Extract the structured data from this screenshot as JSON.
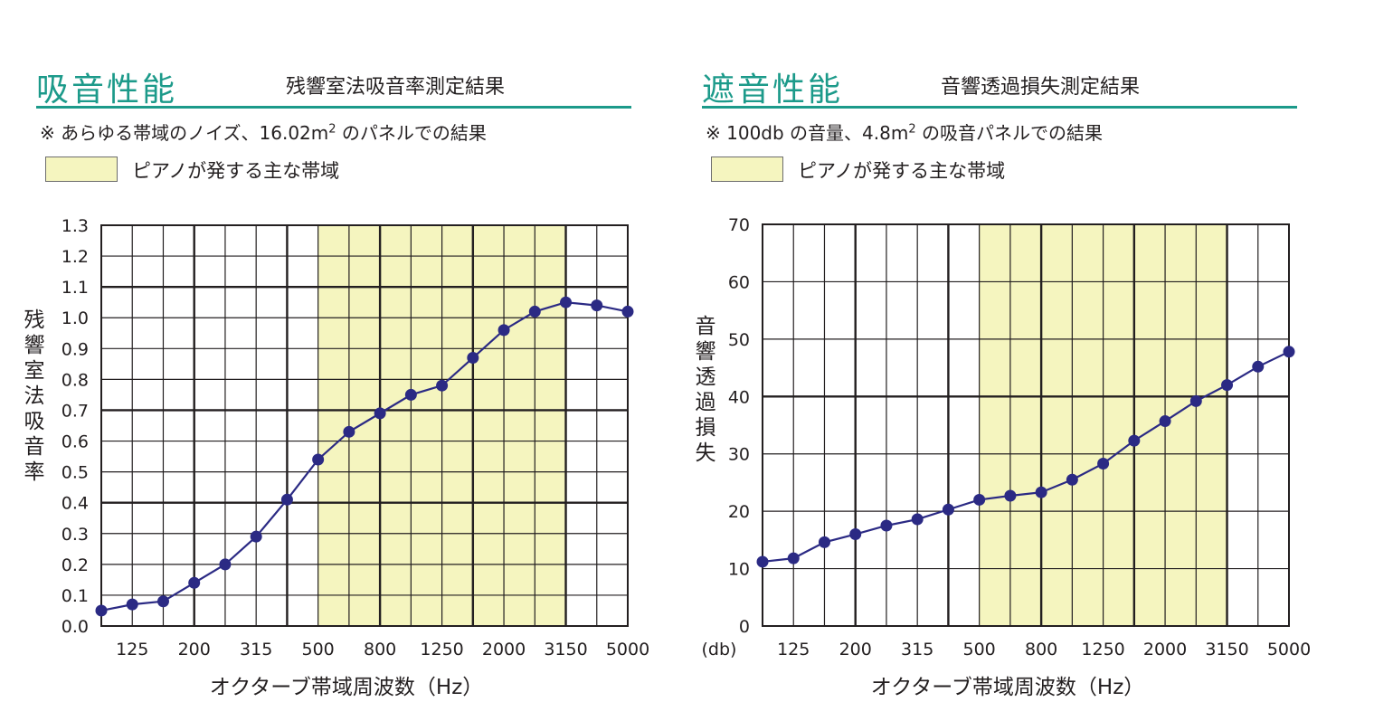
{
  "colors": {
    "heading": "#1c9a8a",
    "band_fill": "#f5f5bf",
    "series": "#2b2a84",
    "grid": "#231f20"
  },
  "chart_data": [
    {
      "type": "line",
      "heading": "吸音性能",
      "title": "残響室法吸音率測定結果",
      "note_prefix": "※ あらゆる帯域のノイズ、16.02m",
      "note_sup": "2",
      "note_suffix": " のパネルでの結果",
      "legend_label": "ピアノが発する主な帯域",
      "ylabel": "残響室法吸音率",
      "xlabel": "オクターブ帯域周波数（Hz）",
      "y_unit_label": "",
      "ylim": [
        0,
        1.3
      ],
      "y_ticks": [
        "0.0",
        "0.1",
        "0.2",
        "0.3",
        "0.4",
        "0.5",
        "0.6",
        "0.7",
        "0.8",
        "0.9",
        "1.0",
        "1.1",
        "1.2",
        "1.3"
      ],
      "x_tick_labels": [
        "125",
        "200",
        "315",
        "500",
        "800",
        "1250",
        "2000",
        "3150",
        "5000"
      ],
      "x": [
        100,
        125,
        160,
        200,
        250,
        315,
        400,
        500,
        630,
        800,
        1000,
        1250,
        1600,
        2000,
        2500,
        3150,
        4000,
        5000
      ],
      "values": [
        0.05,
        0.07,
        0.08,
        0.14,
        0.2,
        0.29,
        0.41,
        0.54,
        0.63,
        0.69,
        0.75,
        0.78,
        0.87,
        0.96,
        1.02,
        1.05,
        1.04,
        1.02
      ],
      "highlight_band": [
        "500",
        "3150"
      ],
      "grid": true
    },
    {
      "type": "line",
      "heading": "遮音性能",
      "title": "音響透過損失測定結果",
      "note_prefix": "※ 100db の音量、4.8m",
      "note_sup": "2",
      "note_suffix": " の吸音パネルでの結果",
      "legend_label": "ピアノが発する主な帯域",
      "ylabel": "音響透過損失",
      "xlabel": "オクターブ帯域周波数（Hz）",
      "y_unit_label": "(db)",
      "ylim": [
        0,
        70
      ],
      "y_ticks": [
        "0",
        "10",
        "20",
        "30",
        "40",
        "50",
        "60",
        "70"
      ],
      "x_tick_labels": [
        "125",
        "200",
        "315",
        "500",
        "800",
        "1250",
        "2000",
        "3150",
        "5000"
      ],
      "x": [
        100,
        125,
        160,
        200,
        250,
        315,
        400,
        500,
        630,
        800,
        1000,
        1250,
        1600,
        2000,
        2500,
        3150,
        4000,
        5000
      ],
      "values": [
        11.2,
        11.8,
        14.6,
        16.0,
        17.5,
        18.6,
        20.3,
        22.0,
        22.7,
        23.3,
        25.5,
        28.3,
        32.3,
        35.7,
        39.2,
        42.0,
        45.2,
        47.8
      ],
      "highlight_band": [
        "500",
        "3150"
      ],
      "grid": true
    }
  ]
}
